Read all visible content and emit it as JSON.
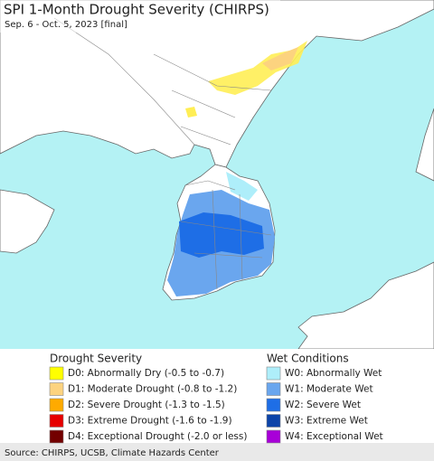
{
  "title": "SPI 1-Month Drought Severity (CHIRPS)",
  "subtitle": "Sep. 6 - Oct. 5, 2023 [final]",
  "legend": {
    "drought": {
      "title": "Drought Severity",
      "items": [
        {
          "label": "D0: Abnormally Dry (-0.5 to -0.7)",
          "color": "#ffff00"
        },
        {
          "label": "D1: Moderate Drought (-0.8 to -1.2)",
          "color": "#fcd37f"
        },
        {
          "label": "D2: Severe Drought (-1.3 to -1.5)",
          "color": "#ffaa00"
        },
        {
          "label": "D3: Extreme Drought (-1.6 to -1.9)",
          "color": "#e60000"
        },
        {
          "label": "D4: Exceptional Drought (-2.0 or less)",
          "color": "#730000"
        }
      ]
    },
    "wet": {
      "title": "Wet Conditions",
      "items": [
        {
          "label": "W0: Abnormally Wet",
          "color": "#aeeefa"
        },
        {
          "label": "W1: Moderate Wet",
          "color": "#6aa6ee"
        },
        {
          "label": "W2: Severe Wet",
          "color": "#1e6ee6"
        },
        {
          "label": "W3: Extreme Wet",
          "color": "#0c44a8"
        },
        {
          "label": "W4: Exceptional Wet",
          "color": "#a800d8"
        }
      ]
    }
  },
  "source": "Source: CHIRPS, UCSB, Climate Hazards Center"
}
